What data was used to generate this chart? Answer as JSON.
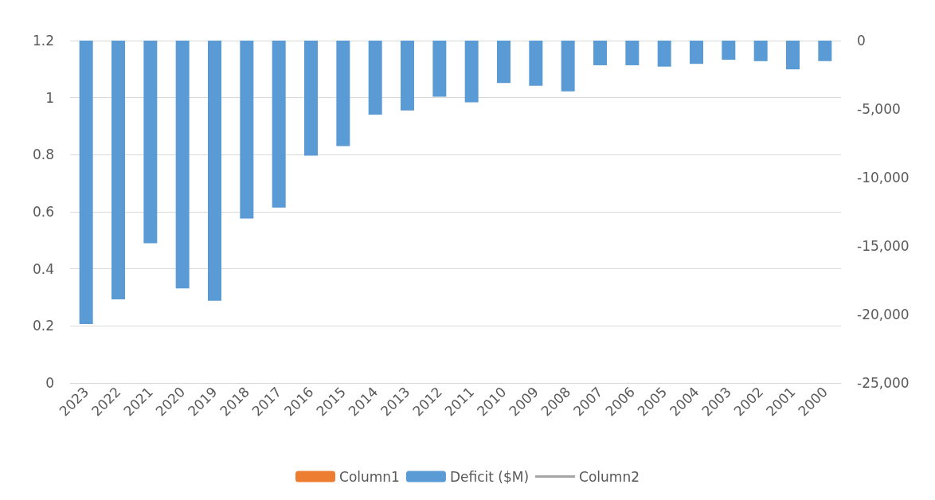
{
  "chart_data": {
    "type": "bar",
    "categories": [
      "2023",
      "2022",
      "2021",
      "2020",
      "2019",
      "2018",
      "2017",
      "2016",
      "2015",
      "2014",
      "2013",
      "2012",
      "2011",
      "2010",
      "2009",
      "2008",
      "2007",
      "2006",
      "2005",
      "2004",
      "2003",
      "2002",
      "2001",
      "2000"
    ],
    "series": [
      {
        "name": "Column1",
        "color": "#ed7d31",
        "values": [
          null,
          null,
          null,
          null,
          null,
          null,
          null,
          null,
          null,
          null,
          null,
          null,
          null,
          null,
          null,
          null,
          null,
          null,
          null,
          null,
          null,
          null,
          null,
          null
        ]
      },
      {
        "name": "Deficit ($M)",
        "axis": "y2",
        "color": "#5b9bd5",
        "values": [
          -20700,
          -18900,
          -14800,
          -18100,
          -19000,
          -13000,
          -12200,
          -8400,
          -7700,
          -5400,
          -5100,
          -4100,
          -4500,
          -3100,
          -3300,
          -3700,
          -1800,
          -1800,
          -1900,
          -1700,
          -1400,
          -1500,
          -2100,
          -1500
        ]
      },
      {
        "name": "Column2",
        "type": "line",
        "color": "#a5a5a5",
        "values": [
          null,
          null,
          null,
          null,
          null,
          null,
          null,
          null,
          null,
          null,
          null,
          null,
          null,
          null,
          null,
          null,
          null,
          null,
          null,
          null,
          null,
          null,
          null,
          null
        ]
      }
    ],
    "ylim": [
      0,
      1.2
    ],
    "yticks": [
      0,
      0.2,
      0.4,
      0.6,
      0.8,
      1,
      1.2
    ],
    "y2lim": [
      -25000,
      0
    ],
    "y2ticks": [
      {
        "value": -25000,
        "label": "-25,000"
      },
      {
        "value": -20000,
        "label": "-20,000"
      },
      {
        "value": -15000,
        "label": "-15,000"
      },
      {
        "value": -10000,
        "label": "-10,000"
      },
      {
        "value": -5000,
        "label": "-5,000"
      },
      0
    ],
    "grid": "y",
    "legend": "bottom",
    "marker": "none"
  }
}
